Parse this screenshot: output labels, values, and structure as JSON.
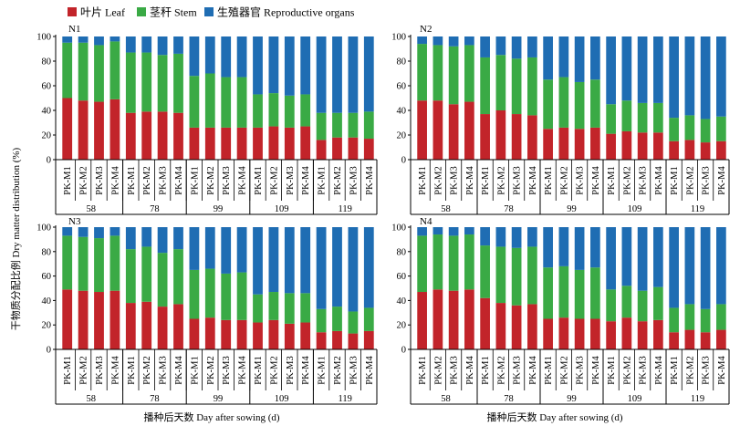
{
  "legend": [
    {
      "key": "leaf",
      "label": "叶片 Leaf",
      "color": "#c2242a"
    },
    {
      "key": "stem",
      "label": "茎秆 Stem",
      "color": "#3aaa45"
    },
    {
      "key": "repro",
      "label": "生殖器官 Reproductive organs",
      "color": "#1f6db3"
    }
  ],
  "ylabel": "干物质分配比例 Dry matter distribution (%)",
  "xlabel": "播种后天数 Day after sowing (d)",
  "chart_data": [
    {
      "type": "bar",
      "stacked": true,
      "panel": "N1",
      "title": "N1",
      "ylim": [
        0,
        100
      ],
      "yticks": [
        0,
        20,
        40,
        60,
        80,
        100
      ],
      "days": [
        "58",
        "78",
        "99",
        "109",
        "119"
      ],
      "treatments": [
        "PK-M1",
        "PK-M2",
        "PK-M3",
        "PK-M4"
      ],
      "series": [
        {
          "name": "叶片 Leaf",
          "values": [
            50,
            48,
            47,
            49,
            38,
            39,
            39,
            38,
            26,
            26,
            26,
            26,
            26,
            27,
            26,
            27,
            16,
            18,
            18,
            17
          ]
        },
        {
          "name": "茎秆 Stem",
          "values": [
            45,
            47,
            46,
            47,
            49,
            48,
            46,
            48,
            42,
            44,
            41,
            41,
            27,
            27,
            26,
            26,
            22,
            20,
            20,
            22
          ]
        },
        {
          "name": "生殖器官 Reproductive organs",
          "values": [
            5,
            5,
            7,
            4,
            13,
            13,
            15,
            14,
            32,
            30,
            33,
            33,
            47,
            46,
            48,
            47,
            62,
            62,
            62,
            61
          ]
        }
      ]
    },
    {
      "type": "bar",
      "stacked": true,
      "panel": "N2",
      "title": "N2",
      "ylim": [
        0,
        100
      ],
      "yticks": [
        0,
        20,
        40,
        60,
        80,
        100
      ],
      "days": [
        "58",
        "78",
        "99",
        "109",
        "119"
      ],
      "treatments": [
        "PK-M1",
        "PK-M2",
        "PK-M3",
        "PK-M4"
      ],
      "series": [
        {
          "name": "叶片 Leaf",
          "values": [
            48,
            48,
            45,
            47,
            37,
            40,
            37,
            36,
            25,
            26,
            25,
            26,
            21,
            23,
            22,
            22,
            15,
            16,
            14,
            15
          ]
        },
        {
          "name": "茎秆 Stem",
          "values": [
            46,
            45,
            47,
            46,
            46,
            45,
            45,
            47,
            40,
            41,
            38,
            39,
            24,
            25,
            24,
            24,
            19,
            20,
            19,
            20
          ]
        },
        {
          "name": "生殖器官 Reproductive organs",
          "values": [
            6,
            7,
            8,
            7,
            17,
            15,
            18,
            17,
            35,
            33,
            37,
            35,
            55,
            52,
            54,
            54,
            66,
            64,
            67,
            65
          ]
        }
      ]
    },
    {
      "type": "bar",
      "stacked": true,
      "panel": "N3",
      "title": "N3",
      "ylim": [
        0,
        100
      ],
      "yticks": [
        0,
        20,
        40,
        60,
        80,
        100
      ],
      "days": [
        "58",
        "78",
        "99",
        "109",
        "119"
      ],
      "treatments": [
        "PK-M1",
        "PK-M2",
        "PK-M3",
        "PK-M4"
      ],
      "series": [
        {
          "name": "叶片 Leaf",
          "values": [
            49,
            48,
            47,
            48,
            38,
            39,
            35,
            37,
            25,
            26,
            24,
            24,
            22,
            24,
            21,
            22,
            14,
            15,
            13,
            15
          ]
        },
        {
          "name": "茎秆 Stem",
          "values": [
            44,
            44,
            44,
            45,
            44,
            45,
            44,
            45,
            40,
            40,
            38,
            39,
            23,
            23,
            25,
            24,
            19,
            20,
            18,
            19
          ]
        },
        {
          "name": "生殖器官 Reproductive organs",
          "values": [
            7,
            8,
            9,
            7,
            18,
            16,
            21,
            18,
            35,
            34,
            38,
            37,
            55,
            53,
            54,
            54,
            67,
            65,
            69,
            66
          ]
        }
      ]
    },
    {
      "type": "bar",
      "stacked": true,
      "panel": "N4",
      "title": "N4",
      "ylim": [
        0,
        100
      ],
      "yticks": [
        0,
        20,
        40,
        60,
        80,
        100
      ],
      "days": [
        "58",
        "78",
        "99",
        "109",
        "119"
      ],
      "treatments": [
        "PK-M1",
        "PK-M2",
        "PK-M3",
        "PK-M4"
      ],
      "series": [
        {
          "name": "叶片 Leaf",
          "values": [
            47,
            49,
            48,
            49,
            42,
            38,
            36,
            37,
            25,
            26,
            25,
            25,
            23,
            26,
            23,
            24,
            14,
            16,
            14,
            16
          ]
        },
        {
          "name": "茎秆 Stem",
          "values": [
            46,
            45,
            45,
            45,
            43,
            46,
            47,
            47,
            42,
            42,
            40,
            42,
            26,
            26,
            25,
            27,
            20,
            21,
            19,
            21
          ]
        },
        {
          "name": "生殖器官 Reproductive organs",
          "values": [
            7,
            6,
            7,
            6,
            15,
            16,
            17,
            16,
            33,
            32,
            35,
            33,
            51,
            48,
            52,
            49,
            66,
            63,
            67,
            63
          ]
        }
      ]
    }
  ]
}
